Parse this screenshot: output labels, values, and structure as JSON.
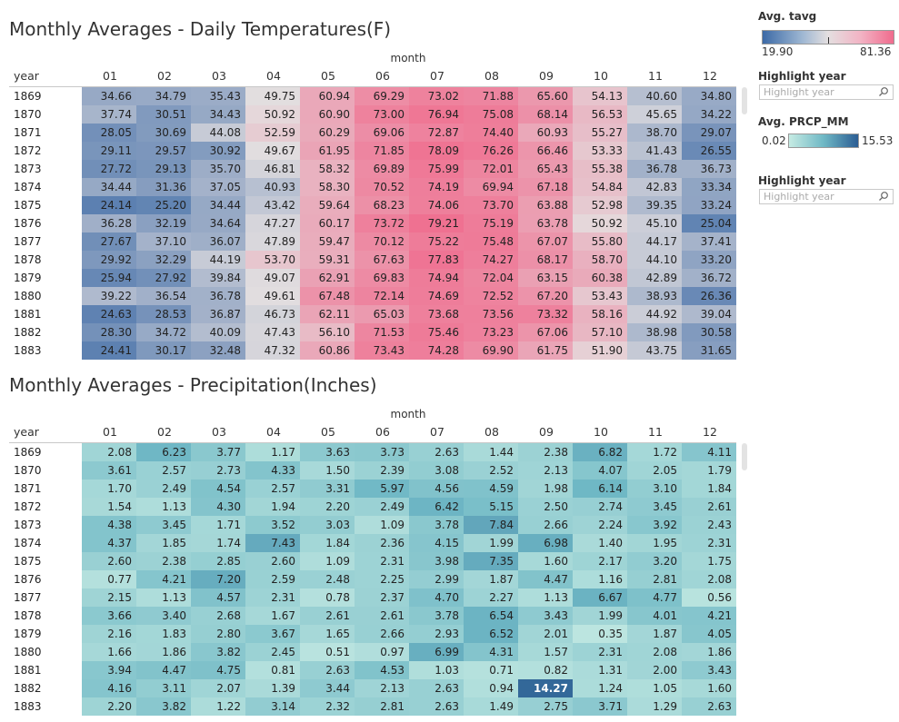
{
  "chart_data": [
    {
      "type": "heatmap",
      "title": "Monthly Averages - Daily Temperatures(F)",
      "xlabel": "month",
      "ylabel": "year",
      "categories": [
        "01",
        "02",
        "03",
        "04",
        "05",
        "06",
        "07",
        "08",
        "09",
        "10",
        "11",
        "12"
      ],
      "years": [
        "1869",
        "1870",
        "1871",
        "1872",
        "1873",
        "1874",
        "1875",
        "1876",
        "1877",
        "1878",
        "1879",
        "1880",
        "1881",
        "1882",
        "1883"
      ],
      "values": [
        [
          "34.66",
          "34.79",
          "35.43",
          "49.75",
          "60.94",
          "69.29",
          "73.02",
          "71.88",
          "65.60",
          "54.13",
          "40.60",
          "34.80"
        ],
        [
          "37.74",
          "30.51",
          "34.43",
          "50.92",
          "60.90",
          "73.00",
          "76.94",
          "75.08",
          "68.14",
          "56.53",
          "45.65",
          "34.22"
        ],
        [
          "28.05",
          "30.69",
          "44.08",
          "52.59",
          "60.29",
          "69.06",
          "72.87",
          "74.40",
          "60.93",
          "55.27",
          "38.70",
          "29.07"
        ],
        [
          "29.11",
          "29.57",
          "30.92",
          "49.67",
          "61.95",
          "71.85",
          "78.09",
          "76.26",
          "66.46",
          "53.33",
          "41.43",
          "26.55"
        ],
        [
          "27.72",
          "29.13",
          "35.70",
          "46.81",
          "58.32",
          "69.89",
          "75.99",
          "72.01",
          "65.43",
          "55.38",
          "36.78",
          "36.73"
        ],
        [
          "34.44",
          "31.36",
          "37.05",
          "40.93",
          "58.30",
          "70.52",
          "74.19",
          "69.94",
          "67.18",
          "54.84",
          "42.83",
          "33.34"
        ],
        [
          "24.14",
          "25.20",
          "34.44",
          "43.42",
          "59.64",
          "68.23",
          "74.06",
          "73.70",
          "63.88",
          "52.98",
          "39.35",
          "33.24"
        ],
        [
          "36.28",
          "32.19",
          "34.64",
          "47.27",
          "60.17",
          "73.72",
          "79.21",
          "75.19",
          "63.78",
          "50.92",
          "45.10",
          "25.04"
        ],
        [
          "27.67",
          "37.10",
          "36.07",
          "47.89",
          "59.47",
          "70.12",
          "75.22",
          "75.48",
          "67.07",
          "55.80",
          "44.17",
          "37.41"
        ],
        [
          "29.92",
          "32.29",
          "44.19",
          "53.70",
          "59.31",
          "67.63",
          "77.83",
          "74.27",
          "68.17",
          "58.70",
          "44.10",
          "33.20"
        ],
        [
          "25.94",
          "27.92",
          "39.84",
          "49.07",
          "62.91",
          "69.83",
          "74.94",
          "72.04",
          "63.15",
          "60.38",
          "42.89",
          "36.72"
        ],
        [
          "39.22",
          "36.54",
          "36.78",
          "49.61",
          "67.48",
          "72.14",
          "74.69",
          "72.52",
          "67.20",
          "53.43",
          "38.93",
          "26.36"
        ],
        [
          "24.63",
          "28.53",
          "36.87",
          "46.73",
          "62.11",
          "65.03",
          "73.68",
          "73.56",
          "73.32",
          "58.16",
          "44.92",
          "39.04"
        ],
        [
          "28.30",
          "34.72",
          "40.09",
          "47.43",
          "56.10",
          "71.53",
          "75.46",
          "73.23",
          "67.06",
          "57.10",
          "38.98",
          "30.58"
        ],
        [
          "24.41",
          "30.17",
          "32.48",
          "47.32",
          "60.86",
          "73.43",
          "74.28",
          "69.90",
          "61.75",
          "51.90",
          "43.75",
          "31.65"
        ]
      ],
      "color_min": 19.9,
      "color_max": 81.36,
      "color_mid": 50.2,
      "colors": {
        "low": "#3c6aa6",
        "mid": "#e4dfe0",
        "high": "#f06b8d"
      }
    },
    {
      "type": "heatmap",
      "title": "Monthly Averages - Precipitation(Inches)",
      "xlabel": "month",
      "ylabel": "year",
      "categories": [
        "01",
        "02",
        "03",
        "04",
        "05",
        "06",
        "07",
        "08",
        "09",
        "10",
        "11",
        "12"
      ],
      "years": [
        "1869",
        "1870",
        "1871",
        "1872",
        "1873",
        "1874",
        "1875",
        "1876",
        "1877",
        "1878",
        "1879",
        "1880",
        "1881",
        "1882",
        "1883"
      ],
      "values": [
        [
          "2.08",
          "6.23",
          "3.77",
          "1.17",
          "3.63",
          "3.73",
          "2.63",
          "1.44",
          "2.38",
          "6.82",
          "1.72",
          "4.11"
        ],
        [
          "3.61",
          "2.57",
          "2.73",
          "4.33",
          "1.50",
          "2.39",
          "3.08",
          "2.52",
          "2.13",
          "4.07",
          "2.05",
          "1.79"
        ],
        [
          "1.70",
          "2.49",
          "4.54",
          "2.57",
          "3.31",
          "5.97",
          "4.56",
          "4.59",
          "1.98",
          "6.14",
          "3.10",
          "1.84"
        ],
        [
          "1.54",
          "1.13",
          "4.30",
          "1.94",
          "2.20",
          "2.49",
          "6.42",
          "5.15",
          "2.50",
          "2.74",
          "3.45",
          "2.61"
        ],
        [
          "4.38",
          "3.45",
          "1.71",
          "3.52",
          "3.03",
          "1.09",
          "3.78",
          "7.84",
          "2.66",
          "2.24",
          "3.92",
          "2.43"
        ],
        [
          "4.37",
          "1.85",
          "1.74",
          "7.43",
          "1.84",
          "2.36",
          "4.15",
          "1.99",
          "6.98",
          "1.40",
          "1.95",
          "2.31"
        ],
        [
          "2.60",
          "2.38",
          "2.85",
          "2.60",
          "1.09",
          "2.31",
          "3.98",
          "7.35",
          "1.60",
          "2.17",
          "3.20",
          "1.75"
        ],
        [
          "0.77",
          "4.21",
          "7.20",
          "2.59",
          "2.48",
          "2.25",
          "2.99",
          "1.87",
          "4.47",
          "1.16",
          "2.81",
          "2.08"
        ],
        [
          "2.15",
          "1.13",
          "4.57",
          "2.31",
          "0.78",
          "2.37",
          "4.70",
          "2.27",
          "1.13",
          "6.67",
          "4.77",
          "0.56"
        ],
        [
          "3.66",
          "3.40",
          "2.68",
          "1.67",
          "2.61",
          "2.61",
          "3.78",
          "6.54",
          "3.43",
          "1.99",
          "4.01",
          "4.21"
        ],
        [
          "2.16",
          "1.83",
          "2.80",
          "3.67",
          "1.65",
          "2.66",
          "2.93",
          "6.52",
          "2.01",
          "0.35",
          "1.87",
          "4.05"
        ],
        [
          "1.66",
          "1.86",
          "3.82",
          "2.45",
          "0.51",
          "0.97",
          "6.99",
          "4.31",
          "1.57",
          "2.31",
          "2.08",
          "1.86"
        ],
        [
          "3.94",
          "4.47",
          "4.75",
          "0.81",
          "2.63",
          "4.53",
          "1.03",
          "0.71",
          "0.82",
          "1.31",
          "2.00",
          "3.43"
        ],
        [
          "4.16",
          "3.11",
          "2.07",
          "1.39",
          "3.44",
          "2.13",
          "2.63",
          "0.94",
          "14.27",
          "1.24",
          "1.05",
          "1.60"
        ],
        [
          "2.20",
          "3.82",
          "1.22",
          "3.14",
          "2.32",
          "2.81",
          "2.63",
          "1.49",
          "2.75",
          "3.71",
          "1.29",
          "2.63"
        ]
      ],
      "color_min": 0.02,
      "color_max": 15.53,
      "colors": {
        "low": "#c6ebe3",
        "high": "#2b5d93"
      }
    }
  ],
  "legend": {
    "tavg_title": "Avg. tavg",
    "tavg_min": "19.90",
    "tavg_max": "81.36",
    "prcp_title": "Avg. PRCP_MM",
    "prcp_min": "0.02",
    "prcp_max": "15.53",
    "highlight_title": "Highlight year",
    "highlight_placeholder": "Highlight year"
  }
}
